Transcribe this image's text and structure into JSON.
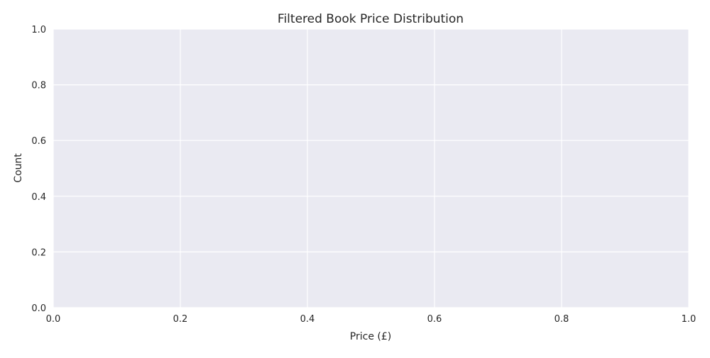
{
  "chart_data": {
    "type": "bar",
    "title": "Filtered Book Price Distribution",
    "xlabel": "Price (£)",
    "ylabel": "Count",
    "xlim": [
      0,
      1
    ],
    "ylim": [
      0,
      1
    ],
    "x_ticks": [
      "0.0",
      "0.2",
      "0.4",
      "0.6",
      "0.8",
      "1.0"
    ],
    "y_ticks": [
      "0.0",
      "0.2",
      "0.4",
      "0.6",
      "0.8",
      "1.0"
    ],
    "categories": [],
    "values": [],
    "grid": true,
    "background_color": "#eaeaf2",
    "grid_color": "#ffffff"
  }
}
